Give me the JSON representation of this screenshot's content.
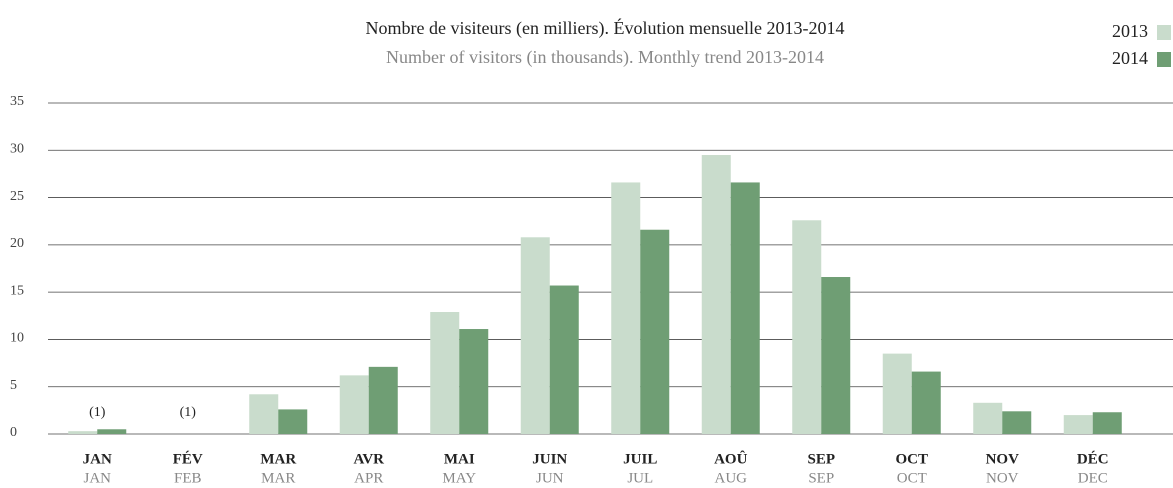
{
  "chart_data": {
    "type": "bar",
    "title": "Nombre de visiteurs (en milliers). Évolution mensuelle 2013-2014",
    "subtitle": "Number of visitors (in thousands). Monthly trend 2013-2014",
    "categories": [
      "JAN",
      "FÉV",
      "MAR",
      "AVR",
      "MAI",
      "JUIN",
      "JUIL",
      "AOÛ",
      "SEP",
      "OCT",
      "NOV",
      "DÉC"
    ],
    "categories_en": [
      "JAN",
      "FEB",
      "MAR",
      "APR",
      "MAY",
      "JUN",
      "JUL",
      "AUG",
      "SEP",
      "OCT",
      "NOV",
      "DEC"
    ],
    "series": [
      {
        "name": "2013",
        "color": "#c9dccc",
        "values": [
          0.3,
          null,
          4.2,
          6.2,
          12.9,
          20.8,
          26.6,
          29.5,
          22.6,
          8.5,
          3.3,
          2.0
        ]
      },
      {
        "name": "2014",
        "color": "#6f9e74",
        "values": [
          0.5,
          null,
          2.6,
          7.1,
          11.1,
          15.7,
          21.6,
          26.6,
          16.6,
          6.6,
          2.4,
          2.3
        ]
      }
    ],
    "annotations": [
      {
        "text": "(1)",
        "category": "JAN"
      },
      {
        "text": "(1)",
        "category": "FÉV"
      }
    ],
    "ylim": [
      0,
      35
    ],
    "yticks": [
      0,
      5,
      10,
      15,
      20,
      25,
      30,
      35
    ],
    "grid": true,
    "legend": "top-right"
  }
}
